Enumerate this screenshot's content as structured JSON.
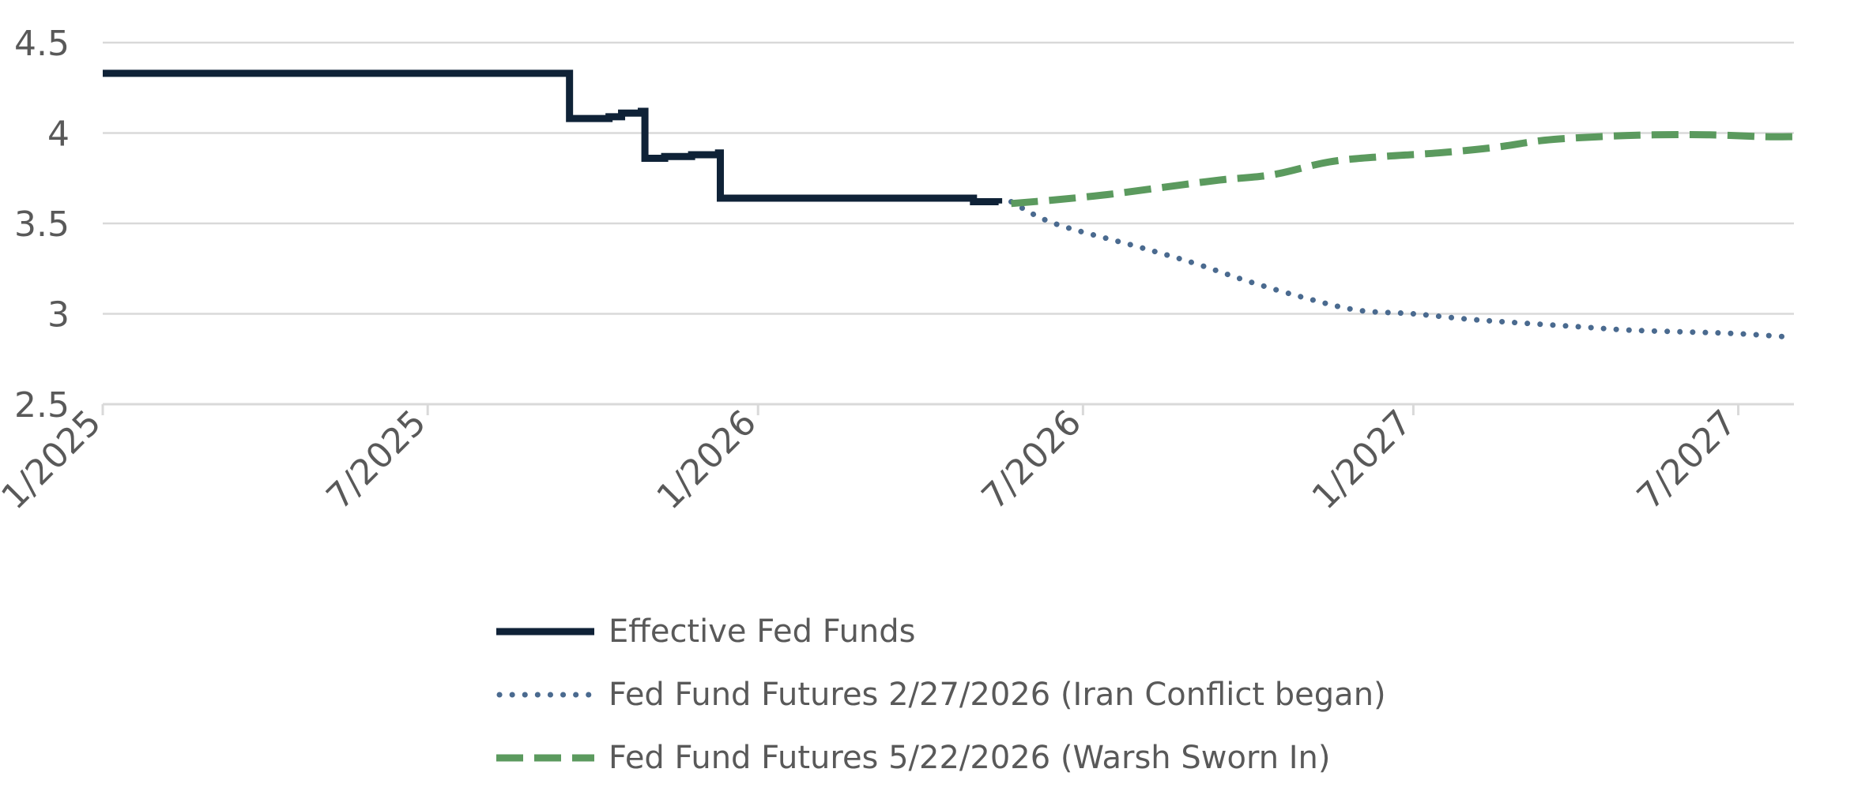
{
  "chart_data": {
    "type": "line",
    "ylim": [
      2.5,
      4.5
    ],
    "yticks": [
      2.5,
      3,
      3.5,
      4,
      4.5
    ],
    "ytick_labels": [
      "2.5",
      "3",
      "3.5",
      "4",
      "4.5"
    ],
    "xlim": [
      "2025-01-01",
      "2027-08-01"
    ],
    "xticks": [
      "2025-01-01",
      "2025-07-01",
      "2026-01-01",
      "2026-07-01",
      "2027-01-01",
      "2027-07-01"
    ],
    "xtick_labels": [
      "1/2025",
      "7/2025",
      "1/2026",
      "7/2026",
      "1/2027",
      "7/2027"
    ],
    "grid": true,
    "legend_position": "bottom",
    "series": [
      {
        "name": "Effective Fed Funds",
        "color": "#0f2237",
        "style": "solid",
        "points": [
          [
            "2025-01-01",
            4.33
          ],
          [
            "2025-09-17",
            4.33
          ],
          [
            "2025-09-18",
            4.08
          ],
          [
            "2025-10-10",
            4.09
          ],
          [
            "2025-10-17",
            4.11
          ],
          [
            "2025-10-28",
            4.12
          ],
          [
            "2025-10-30",
            3.86
          ],
          [
            "2025-11-10",
            3.87
          ],
          [
            "2025-11-25",
            3.88
          ],
          [
            "2025-12-10",
            3.89
          ],
          [
            "2025-12-11",
            3.64
          ],
          [
            "2026-04-20",
            3.64
          ],
          [
            "2026-05-01",
            3.62
          ],
          [
            "2026-05-15",
            3.61
          ]
        ]
      },
      {
        "name": "Fed Fund Futures 2/27/2026 (Iran Conflict began)",
        "color": "#4a6a8f",
        "style": "dotted",
        "points": [
          [
            "2026-05-22",
            3.62
          ],
          [
            "2026-06-15",
            3.5
          ],
          [
            "2026-08-01",
            3.37
          ],
          [
            "2026-09-01",
            3.28
          ],
          [
            "2026-10-01",
            3.18
          ],
          [
            "2026-11-01",
            3.09
          ],
          [
            "2026-12-01",
            3.02
          ],
          [
            "2027-01-01",
            3.0
          ],
          [
            "2027-02-01",
            2.97
          ],
          [
            "2027-03-01",
            2.95
          ],
          [
            "2027-04-01",
            2.93
          ],
          [
            "2027-05-01",
            2.91
          ],
          [
            "2027-06-01",
            2.9
          ],
          [
            "2027-07-01",
            2.89
          ],
          [
            "2027-08-01",
            2.87
          ]
        ]
      },
      {
        "name": "Fed Fund Futures 5/22/2026 (Warsh Sworn In)",
        "color": "#5b9a5e",
        "style": "dashed",
        "points": [
          [
            "2026-05-22",
            3.61
          ],
          [
            "2026-06-15",
            3.63
          ],
          [
            "2026-07-15",
            3.66
          ],
          [
            "2026-08-15",
            3.7
          ],
          [
            "2026-09-15",
            3.74
          ],
          [
            "2026-10-15",
            3.77
          ],
          [
            "2026-11-15",
            3.84
          ],
          [
            "2026-12-15",
            3.87
          ],
          [
            "2027-01-15",
            3.89
          ],
          [
            "2027-02-15",
            3.92
          ],
          [
            "2027-03-15",
            3.96
          ],
          [
            "2027-04-15",
            3.98
          ],
          [
            "2027-05-15",
            3.99
          ],
          [
            "2027-06-15",
            3.99
          ],
          [
            "2027-07-15",
            3.98
          ],
          [
            "2027-08-01",
            3.98
          ]
        ]
      }
    ]
  }
}
